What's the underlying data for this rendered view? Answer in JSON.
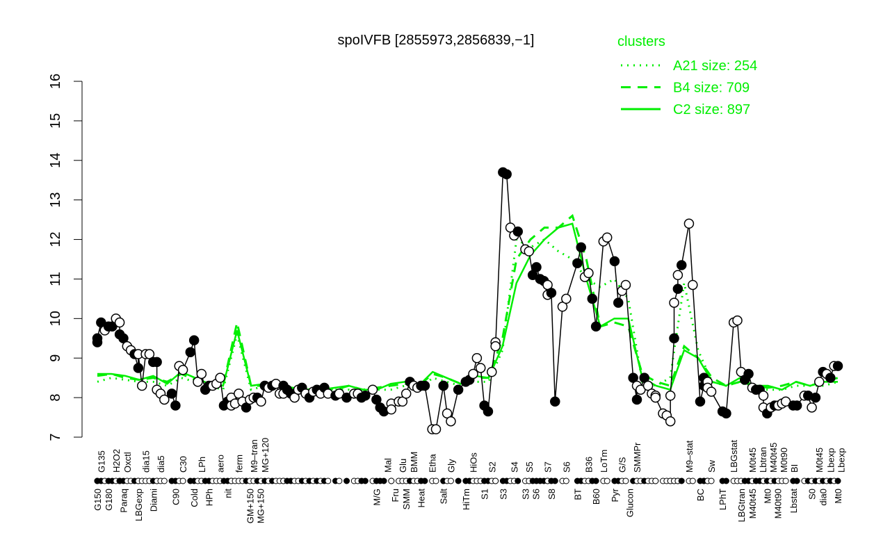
{
  "chart_data": {
    "type": "line",
    "title": "spoIVFB [2855973,2856839,−1]",
    "xlabel": "",
    "ylabel": "",
    "ylim": [
      7,
      16
    ],
    "yticks": [
      7,
      8,
      9,
      10,
      11,
      12,
      13,
      14,
      15,
      16
    ],
    "xlim": [
      0,
      199
    ],
    "grid": false,
    "legend": {
      "title": "clusters",
      "placement": "top-right",
      "color": "#00ee00",
      "entries": [
        {
          "label": "A21 size: 254",
          "style": "dotted"
        },
        {
          "label": "B4 size: 709",
          "style": "dashed"
        },
        {
          "label": "C2 size: 897",
          "style": "solid"
        }
      ]
    },
    "colors": {
      "points": "#000000",
      "clusters": "#00ee00"
    },
    "points": [
      [
        0,
        9.4,
        1
      ],
      [
        0,
        9.5,
        1
      ],
      [
        1,
        9.9,
        1
      ],
      [
        2,
        9.7,
        0
      ],
      [
        3,
        9.8,
        1
      ],
      [
        4,
        9.8,
        1
      ],
      [
        5,
        10.0,
        0
      ],
      [
        6,
        9.9,
        0
      ],
      [
        6,
        9.6,
        1
      ],
      [
        7,
        9.5,
        1
      ],
      [
        8,
        9.3,
        0
      ],
      [
        9,
        9.2,
        0
      ],
      [
        10,
        9.1,
        1
      ],
      [
        11,
        8.75,
        1
      ],
      [
        11,
        9.1,
        0
      ],
      [
        12,
        8.3,
        0
      ],
      [
        13,
        9.1,
        0
      ],
      [
        14,
        9.1,
        0
      ],
      [
        15,
        8.9,
        1
      ],
      [
        16,
        8.9,
        1
      ],
      [
        16,
        8.2,
        0
      ],
      [
        17,
        8.1,
        0
      ],
      [
        18,
        7.95,
        0
      ],
      [
        20,
        8.1,
        1
      ],
      [
        21,
        7.8,
        1
      ],
      [
        22,
        8.8,
        0
      ],
      [
        23,
        8.7,
        0
      ],
      [
        25,
        9.15,
        1
      ],
      [
        26,
        9.45,
        1
      ],
      [
        27,
        8.4,
        0
      ],
      [
        28,
        8.6,
        0
      ],
      [
        29,
        8.2,
        1
      ],
      [
        30,
        8.3,
        1
      ],
      [
        31,
        8.3,
        0
      ],
      [
        32,
        8.35,
        0
      ],
      [
        33,
        8.5,
        0
      ],
      [
        34,
        7.8,
        1
      ],
      [
        35,
        7.9,
        1
      ],
      [
        36,
        8.0,
        0
      ],
      [
        36,
        7.8,
        0
      ],
      [
        37,
        7.85,
        0
      ],
      [
        38,
        8.1,
        0
      ],
      [
        39,
        7.9,
        0
      ],
      [
        40,
        7.75,
        1
      ],
      [
        41,
        7.95,
        0
      ],
      [
        42,
        8.0,
        0
      ],
      [
        43,
        8.0,
        1
      ],
      [
        44,
        7.9,
        0
      ],
      [
        45,
        8.3,
        1
      ],
      [
        46,
        8.25,
        0
      ],
      [
        47,
        8.3,
        1
      ],
      [
        48,
        8.35,
        0
      ],
      [
        49,
        8.1,
        0
      ],
      [
        50,
        8.3,
        1
      ],
      [
        50,
        8.1,
        0
      ],
      [
        51,
        8.2,
        1
      ],
      [
        52,
        8.1,
        1
      ],
      [
        53,
        8.0,
        0
      ],
      [
        54,
        8.2,
        0
      ],
      [
        55,
        8.25,
        1
      ],
      [
        56,
        8.1,
        0
      ],
      [
        57,
        8.0,
        1
      ],
      [
        58,
        8.15,
        0
      ],
      [
        59,
        8.2,
        1
      ],
      [
        60,
        8.1,
        0
      ],
      [
        61,
        8.25,
        1
      ],
      [
        62,
        8.1,
        0
      ],
      [
        64,
        8.05,
        1
      ],
      [
        65,
        8.1,
        0
      ],
      [
        67,
        8.0,
        1
      ],
      [
        69,
        8.1,
        0
      ],
      [
        70,
        8.1,
        0
      ],
      [
        71,
        8.0,
        1
      ],
      [
        72,
        8.05,
        1
      ],
      [
        74,
        8.2,
        0
      ],
      [
        75,
        7.95,
        1
      ],
      [
        76,
        7.75,
        1
      ],
      [
        77,
        7.65,
        1
      ],
      [
        79,
        7.85,
        0
      ],
      [
        79,
        7.7,
        0
      ],
      [
        81,
        7.9,
        0
      ],
      [
        82,
        7.9,
        0
      ],
      [
        83,
        8.1,
        0
      ],
      [
        84,
        8.4,
        1
      ],
      [
        85,
        8.3,
        0
      ],
      [
        86,
        8.25,
        0
      ],
      [
        87,
        8.3,
        1
      ],
      [
        88,
        8.3,
        1
      ],
      [
        90,
        7.2,
        0
      ],
      [
        91,
        7.2,
        0
      ],
      [
        93,
        8.3,
        1
      ],
      [
        93,
        8.3,
        1
      ],
      [
        94,
        7.6,
        0
      ],
      [
        95,
        7.4,
        0
      ],
      [
        97,
        8.2,
        1
      ],
      [
        99,
        8.4,
        1
      ],
      [
        100,
        8.45,
        1
      ],
      [
        101,
        8.6,
        0
      ],
      [
        102,
        9.0,
        0
      ],
      [
        103,
        8.75,
        0
      ],
      [
        104,
        7.8,
        1
      ],
      [
        105,
        7.65,
        1
      ],
      [
        106,
        8.65,
        0
      ],
      [
        107,
        9.4,
        0
      ],
      [
        107,
        9.3,
        0
      ],
      [
        109,
        13.7,
        1
      ],
      [
        110,
        13.65,
        1
      ],
      [
        111,
        12.3,
        0
      ],
      [
        112,
        12.1,
        0
      ],
      [
        113,
        12.2,
        1
      ],
      [
        115,
        11.75,
        0
      ],
      [
        116,
        11.7,
        0
      ],
      [
        117,
        11.1,
        1
      ],
      [
        118,
        11.3,
        1
      ],
      [
        119,
        11.0,
        1
      ],
      [
        120,
        10.95,
        1
      ],
      [
        121,
        10.6,
        0
      ],
      [
        121,
        10.85,
        0
      ],
      [
        122,
        10.65,
        1
      ],
      [
        123,
        7.9,
        1
      ],
      [
        125,
        10.3,
        0
      ],
      [
        126,
        10.5,
        0
      ],
      [
        129,
        11.4,
        1
      ],
      [
        130,
        11.8,
        1
      ],
      [
        131,
        11.05,
        0
      ],
      [
        132,
        11.15,
        0
      ],
      [
        133,
        10.5,
        1
      ],
      [
        134,
        9.8,
        1
      ],
      [
        136,
        11.95,
        0
      ],
      [
        137,
        12.05,
        0
      ],
      [
        139,
        11.45,
        1
      ],
      [
        140,
        10.4,
        1
      ],
      [
        141,
        10.7,
        0
      ],
      [
        142,
        10.85,
        0
      ],
      [
        144,
        8.5,
        1
      ],
      [
        145,
        7.95,
        1
      ],
      [
        145,
        8.3,
        0
      ],
      [
        146,
        8.2,
        0
      ],
      [
        147,
        8.5,
        1
      ],
      [
        148,
        8.3,
        0
      ],
      [
        149,
        8.1,
        0
      ],
      [
        150,
        8.05,
        0
      ],
      [
        150,
        8.0,
        0
      ],
      [
        152,
        7.6,
        0
      ],
      [
        153,
        7.55,
        0
      ],
      [
        154,
        7.4,
        0
      ],
      [
        154,
        8.05,
        0
      ],
      [
        155,
        9.5,
        1
      ],
      [
        155,
        10.4,
        0
      ],
      [
        156,
        10.75,
        1
      ],
      [
        156,
        11.1,
        0
      ],
      [
        157,
        11.35,
        1
      ],
      [
        159,
        12.4,
        0
      ],
      [
        160,
        10.85,
        0
      ],
      [
        162,
        7.9,
        1
      ],
      [
        163,
        8.3,
        1
      ],
      [
        163,
        8.5,
        1
      ],
      [
        164,
        8.4,
        0
      ],
      [
        164,
        8.25,
        0
      ],
      [
        165,
        8.15,
        0
      ],
      [
        168,
        7.65,
        1
      ],
      [
        169,
        7.6,
        1
      ],
      [
        171,
        9.9,
        0
      ],
      [
        172,
        9.95,
        0
      ],
      [
        173,
        8.65,
        0
      ],
      [
        174,
        8.45,
        1
      ],
      [
        175,
        8.6,
        1
      ],
      [
        176,
        8.25,
        0
      ],
      [
        177,
        8.2,
        1
      ],
      [
        178,
        8.2,
        1
      ],
      [
        179,
        8.05,
        0
      ],
      [
        179,
        7.75,
        0
      ],
      [
        180,
        7.6,
        1
      ],
      [
        181,
        7.75,
        0
      ],
      [
        182,
        7.8,
        1
      ],
      [
        183,
        7.8,
        0
      ],
      [
        184,
        7.85,
        0
      ],
      [
        185,
        7.9,
        0
      ],
      [
        187,
        7.8,
        1
      ],
      [
        188,
        7.8,
        1
      ],
      [
        190,
        8.05,
        0
      ],
      [
        191,
        8.05,
        1
      ],
      [
        192,
        7.75,
        0
      ],
      [
        193,
        8.0,
        1
      ],
      [
        194,
        8.4,
        0
      ],
      [
        195,
        8.65,
        1
      ],
      [
        196,
        8.6,
        0
      ],
      [
        197,
        8.5,
        1
      ],
      [
        198,
        8.8,
        0
      ],
      [
        199,
        8.8,
        1
      ]
    ],
    "series": [
      {
        "name": "C2 size: 897",
        "style": "solid",
        "values": [
          8.6,
          8.6,
          8.55,
          8.45,
          8.55,
          8.35,
          8.65,
          8.5,
          8.35,
          8.3,
          9.7,
          8.3,
          8.35,
          8.3,
          8.25,
          8.2,
          8.2,
          8.25,
          8.3,
          8.2,
          8.2,
          8.35,
          8.4,
          8.3,
          8.65,
          8.5,
          8.35,
          8.55,
          8.5,
          9.3,
          10.9,
          11.6,
          12.0,
          12.3,
          12.4,
          11.0,
          9.8,
          10.0,
          10.0,
          8.5,
          8.3,
          8.2,
          9.2,
          9.0,
          8.4,
          8.3,
          8.5,
          8.3,
          8.3,
          8.2,
          8.4,
          8.3,
          8.4,
          8.4
        ]
      },
      {
        "name": "B4 size: 709",
        "style": "dashed",
        "values": [
          8.55,
          8.6,
          8.5,
          8.45,
          8.5,
          8.4,
          8.6,
          8.45,
          8.35,
          8.3,
          9.9,
          8.3,
          8.3,
          8.3,
          8.2,
          8.2,
          8.25,
          8.2,
          8.3,
          8.2,
          8.25,
          8.3,
          8.35,
          8.3,
          8.6,
          8.5,
          8.35,
          8.5,
          8.5,
          9.5,
          11.5,
          12.0,
          12.3,
          12.3,
          12.6,
          11.5,
          9.8,
          9.9,
          9.8,
          8.6,
          8.4,
          8.3,
          9.3,
          9.0,
          8.5,
          8.3,
          8.4,
          8.3,
          8.25,
          8.3,
          8.4,
          8.3,
          8.4,
          8.5
        ]
      },
      {
        "name": "A21 size: 254",
        "style": "dotted",
        "values": [
          8.4,
          8.5,
          8.45,
          8.4,
          8.4,
          8.3,
          8.5,
          8.4,
          8.3,
          8.2,
          9.6,
          8.2,
          8.3,
          8.2,
          8.2,
          8.1,
          8.2,
          8.2,
          8.2,
          8.1,
          8.2,
          8.2,
          8.3,
          8.2,
          8.5,
          8.4,
          8.3,
          8.4,
          8.4,
          9.2,
          12.0,
          11.8,
          12.0,
          11.7,
          11.5,
          11.0,
          10.8,
          11.0,
          10.5,
          8.4,
          8.3,
          8.5,
          10.9,
          9.2,
          8.4,
          8.3,
          8.4,
          8.2,
          8.2,
          8.2,
          8.3,
          8.3,
          8.3,
          8.4
        ]
      }
    ],
    "xtick_labels_bottom": [
      [
        0,
        "G150"
      ],
      [
        3,
        "G180"
      ],
      [
        7,
        "Paraq"
      ],
      [
        11,
        "LBGexp"
      ],
      [
        15,
        "Diami"
      ],
      [
        21,
        "C90"
      ],
      [
        26,
        "Cold"
      ],
      [
        30,
        "HPh"
      ],
      [
        35,
        "nit"
      ],
      [
        41,
        "GM+150"
      ],
      [
        43,
        "MG+150"
      ],
      [
        75,
        "M/G"
      ],
      [
        80,
        "Fru"
      ],
      [
        83,
        "SMM"
      ],
      [
        87,
        "Heat"
      ],
      [
        93,
        "Salt"
      ],
      [
        99,
        "HiTm"
      ],
      [
        104,
        "S1"
      ],
      [
        109,
        "S3"
      ],
      [
        115,
        "S3"
      ],
      [
        117,
        "S6"
      ],
      [
        122,
        "S8"
      ],
      [
        129,
        "BT"
      ],
      [
        134,
        "B60"
      ],
      [
        139,
        "Pyr"
      ],
      [
        143,
        "Glucon"
      ],
      [
        162,
        "BC"
      ],
      [
        168,
        "LPhT"
      ],
      [
        173,
        "LBGtran"
      ],
      [
        176,
        "M40t45"
      ],
      [
        180,
        "Mt0"
      ],
      [
        182,
        "M40t90"
      ],
      [
        187,
        "Lbstat"
      ],
      [
        192,
        "S0"
      ],
      [
        195,
        "dia0"
      ],
      [
        199,
        "Mt0"
      ]
    ],
    "xtick_labels_top": [
      [
        1,
        "G135"
      ],
      [
        5,
        "H2O2"
      ],
      [
        8,
        "Oxctl"
      ],
      [
        13,
        "dia15"
      ],
      [
        17,
        "dia5"
      ],
      [
        23,
        "C30"
      ],
      [
        28,
        "LPh"
      ],
      [
        33,
        "aero"
      ],
      [
        38,
        "ferm"
      ],
      [
        42,
        "M9–tran"
      ],
      [
        45,
        "MG+120"
      ],
      [
        78,
        "Mal"
      ],
      [
        82,
        "Glu"
      ],
      [
        85,
        "BMM"
      ],
      [
        90,
        "Etha"
      ],
      [
        95,
        "Gly"
      ],
      [
        101,
        "HiOs"
      ],
      [
        106,
        "S2"
      ],
      [
        112,
        "S4"
      ],
      [
        116,
        "S5"
      ],
      [
        121,
        "S7"
      ],
      [
        126,
        "S6"
      ],
      [
        132,
        "B36"
      ],
      [
        136,
        "LoTm"
      ],
      [
        141,
        "G/S"
      ],
      [
        145,
        "SMMPr"
      ],
      [
        159,
        "M9–stat"
      ],
      [
        165,
        "Sw"
      ],
      [
        171,
        "LBGstat"
      ],
      [
        176,
        "M0t45"
      ],
      [
        178,
        "Lbtran"
      ],
      [
        179,
        "M40t45"
      ],
      [
        183,
        "M0t90"
      ],
      [
        187,
        "BI"
      ],
      [
        194,
        "M0t45"
      ],
      [
        197,
        "Lbexp"
      ],
      [
        198,
        "Lbexp"
      ]
    ]
  }
}
